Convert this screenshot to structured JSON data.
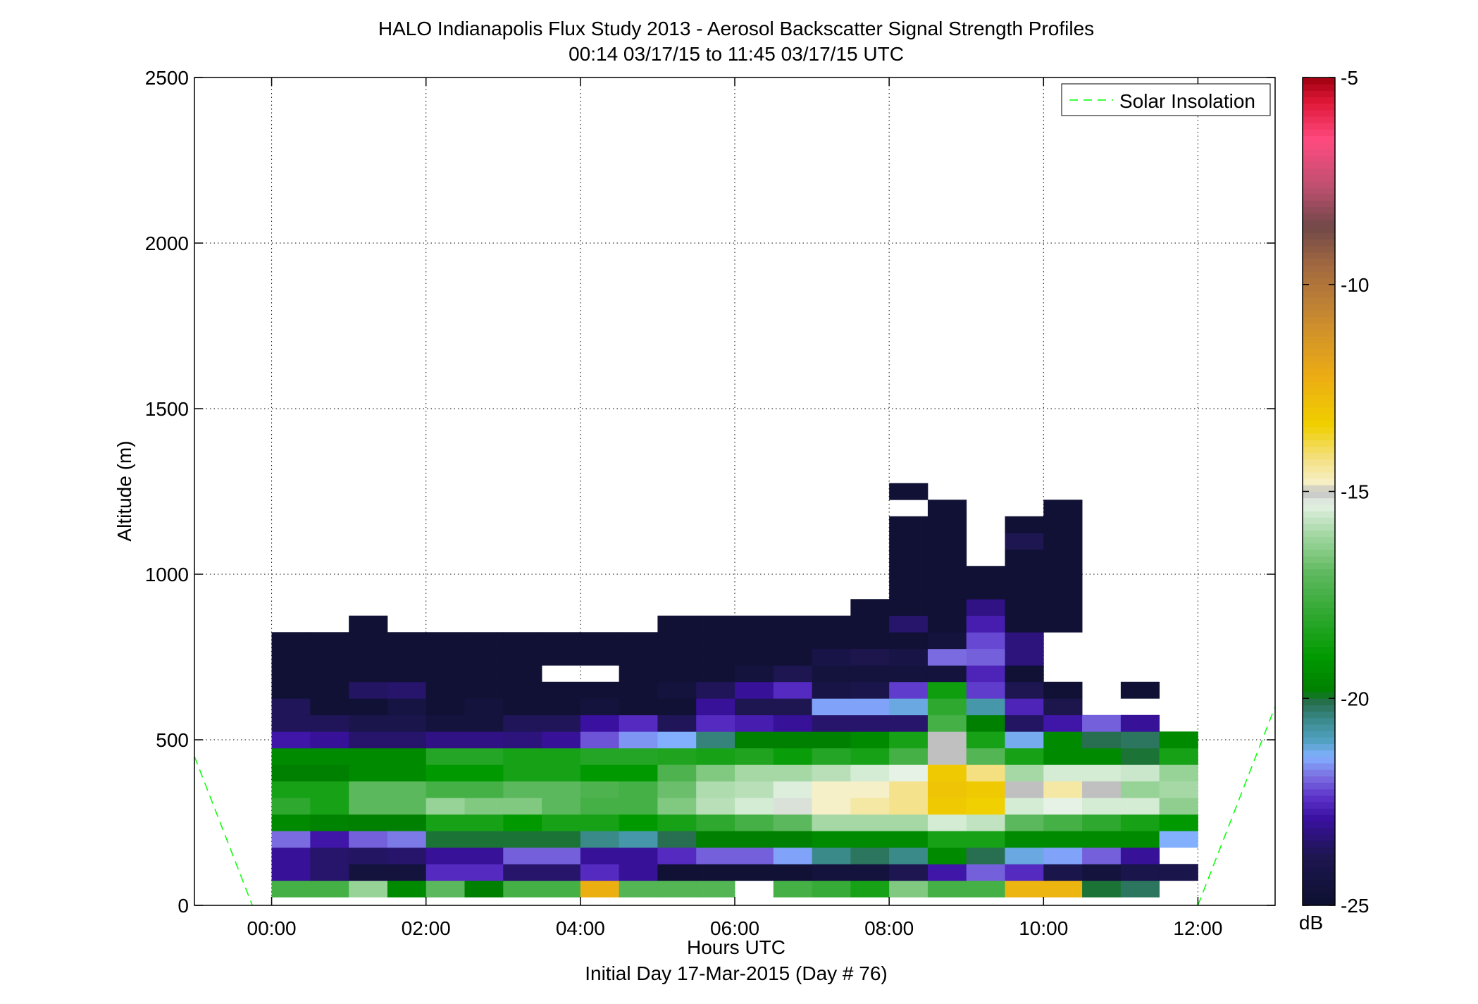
{
  "chart_data": {
    "type": "heatmap",
    "title": "HALO Indianapolis Flux Study 2013 - Aerosol Backscatter Signal Strength Profiles",
    "subtitle": "00:14 03/17/15 to 11:45 03/17/15  UTC",
    "xlabel": "Hours UTC",
    "xlabel2": "Initial Day 17-Mar-2015 (Day # 76)",
    "ylabel": "Altitude (m)",
    "xlim": [
      -1,
      13
    ],
    "ylim": [
      0,
      2500
    ],
    "grid": true,
    "xticks": [
      {
        "v": 0,
        "label": "00:00"
      },
      {
        "v": 2,
        "label": "02:00"
      },
      {
        "v": 4,
        "label": "04:00"
      },
      {
        "v": 6,
        "label": "06:00"
      },
      {
        "v": 8,
        "label": "08:00"
      },
      {
        "v": 10,
        "label": "10:00"
      },
      {
        "v": 12,
        "label": "12:00"
      }
    ],
    "yticks": [
      {
        "v": 0,
        "label": "0"
      },
      {
        "v": 500,
        "label": "500"
      },
      {
        "v": 1000,
        "label": "1000"
      },
      {
        "v": 1500,
        "label": "1500"
      },
      {
        "v": 2000,
        "label": "2000"
      },
      {
        "v": 2500,
        "label": "2500"
      }
    ],
    "legend": {
      "position": "top-right",
      "entries": [
        {
          "name": "Solar Insolation",
          "color": "#00ff00",
          "style": "dashed"
        }
      ]
    },
    "solar_insolation": {
      "segments": [
        [
          [
            -1,
            450
          ],
          [
            -0.25,
            0
          ]
        ],
        [
          [
            12,
            0
          ],
          [
            13,
            600
          ]
        ]
      ]
    },
    "colorbar": {
      "label": "dB",
      "range": [
        -25,
        -5
      ],
      "ticks": [
        {
          "v": -5,
          "label": "-5"
        },
        {
          "v": -10,
          "label": "-10"
        },
        {
          "v": -15,
          "label": "-15"
        },
        {
          "v": -20,
          "label": "-20"
        },
        {
          "v": -25,
          "label": "-25"
        }
      ],
      "stops": [
        [
          -25,
          "#0d1030"
        ],
        [
          -23.8,
          "#1d1650"
        ],
        [
          -22.9,
          "#3a10a0"
        ],
        [
          -22.4,
          "#5a30c8"
        ],
        [
          -21.9,
          "#7a6ce0"
        ],
        [
          -21.4,
          "#82b0ff"
        ],
        [
          -21.0,
          "#50a0c0"
        ],
        [
          -20.5,
          "#3a8a8a"
        ],
        [
          -20.1,
          "#286e50"
        ],
        [
          -19.8,
          "#008000"
        ],
        [
          -19.0,
          "#009a00"
        ],
        [
          -18.0,
          "#2ea82e"
        ],
        [
          -17.0,
          "#5cb85c"
        ],
        [
          -16.0,
          "#a6d8a6"
        ],
        [
          -15.3,
          "#e6f2e6"
        ],
        [
          -15.0,
          "#c0c0c0"
        ],
        [
          -14.8,
          "#f6f0c8"
        ],
        [
          -14.2,
          "#f4e080"
        ],
        [
          -13.4,
          "#f0d000"
        ],
        [
          -12.2,
          "#ecac14"
        ],
        [
          -10.8,
          "#c88a30"
        ],
        [
          -9.5,
          "#a06840"
        ],
        [
          -8.6,
          "#704848"
        ],
        [
          -7.6,
          "#c05070"
        ],
        [
          -6.5,
          "#ff4a80"
        ],
        [
          -5.6,
          "#e01838"
        ],
        [
          -5,
          "#a00010"
        ]
      ]
    },
    "x_start": 0.25,
    "x_step": 0.5,
    "y_start": 50,
    "y_step": 50,
    "rows": [
      [
        -17.5,
        -17.5,
        -16.2,
        -19.5,
        -17.0,
        -19.8,
        -17.5,
        -17.5,
        -12.3,
        -17.2,
        -17.2,
        -17.2,
        null,
        -17.5,
        -17.8,
        -18.5,
        -16.5,
        -17.5,
        -17.5,
        -12.5,
        -12.5,
        -20.0,
        -20.2,
        null,
        null
      ],
      [
        -23.0,
        -23.5,
        -24.5,
        -24.5,
        -22.5,
        -22.5,
        -23.5,
        -23.5,
        -22.5,
        -23.0,
        -24.8,
        -24.8,
        -24.8,
        -24.8,
        -24.5,
        -24.5,
        -23.8,
        -22.8,
        -22.0,
        -22.5,
        -24.0,
        -24.5,
        -24.0,
        -24.0,
        null
      ],
      [
        -23.0,
        -23.5,
        -23.6,
        -23.5,
        -23.0,
        -23.0,
        -22.0,
        -22.0,
        -23.0,
        -23.0,
        -22.5,
        -22.0,
        -22.0,
        -21.5,
        -20.5,
        -20.2,
        -20.5,
        -19.5,
        -20.1,
        -21.2,
        -21.5,
        -22.0,
        -23.0,
        null,
        null
      ],
      [
        -21.9,
        -22.8,
        -22.0,
        -21.8,
        -20.0,
        -20.0,
        -20.0,
        -20.0,
        -20.5,
        -20.8,
        -20.1,
        -19.8,
        -19.8,
        -19.8,
        -19.5,
        -19.5,
        -19.5,
        -18.5,
        -18.5,
        -19.5,
        -19.5,
        -19.5,
        -19.5,
        -21.4,
        null
      ],
      [
        -19.5,
        -19.7,
        -19.8,
        -19.8,
        -18.5,
        -18.5,
        -19.0,
        -18.5,
        -18.5,
        -19.0,
        -18.5,
        -18.0,
        -17.5,
        -17.0,
        -16.0,
        -16.0,
        -16.0,
        -15.5,
        -15.7,
        -17.0,
        -17.5,
        -18.0,
        -18.5,
        -19.0,
        null
      ],
      [
        -18.0,
        -18.5,
        -17.0,
        -17.0,
        -16.2,
        -16.5,
        -16.5,
        -17.0,
        -17.5,
        -17.5,
        -16.5,
        -15.8,
        -15.5,
        -15.2,
        -14.8,
        -14.5,
        -14.3,
        -13.2,
        -13.4,
        -15.5,
        -15.3,
        -15.5,
        -15.5,
        -16.3,
        null
      ],
      [
        -18.5,
        -18.5,
        -17.0,
        -17.0,
        -17.5,
        -17.5,
        -17.0,
        -17.0,
        -17.3,
        -17.5,
        -16.8,
        -15.9,
        -15.8,
        -15.4,
        -14.8,
        -14.8,
        -14.3,
        -13.0,
        -13.2,
        -15.0,
        -14.5,
        -15.0,
        -16.2,
        -16.0,
        null
      ],
      [
        -19.8,
        -19.8,
        -19.5,
        -19.5,
        -19.0,
        -19.0,
        -18.5,
        -18.5,
        -19.0,
        -19.0,
        -17.3,
        -16.5,
        -16.0,
        -16.0,
        -15.8,
        -15.5,
        -15.3,
        -13.2,
        -14.2,
        -16.0,
        -15.5,
        -15.5,
        -15.6,
        -16.2,
        null
      ],
      [
        -19.5,
        -19.5,
        -19.5,
        -19.5,
        -18.2,
        -18.2,
        -18.5,
        -18.5,
        -18.2,
        -18.2,
        -18.3,
        -18.5,
        -18.3,
        -18.8,
        -18.2,
        -18.5,
        -17.5,
        -15.0,
        -17.2,
        -18.5,
        -19.5,
        -19.5,
        -20.0,
        -18.5,
        null
      ],
      [
        -22.8,
        -23.0,
        -23.5,
        -23.5,
        -23.2,
        -23.2,
        -23.3,
        -23.0,
        -22.1,
        -21.6,
        -21.4,
        -20.4,
        -19.8,
        -19.8,
        -19.8,
        -19.5,
        -18.5,
        -15.0,
        -18.5,
        -21.3,
        -19.5,
        -20.1,
        -20.2,
        -19.5,
        null
      ],
      [
        -23.7,
        -23.7,
        -24.0,
        -24.0,
        -24.5,
        -24.5,
        -23.7,
        -23.7,
        -22.9,
        -22.5,
        -23.7,
        -22.5,
        -22.7,
        -23.0,
        -23.5,
        -23.5,
        -23.5,
        -17.5,
        -19.8,
        -23.6,
        -22.8,
        -22.0,
        -23.0,
        null,
        null
      ],
      [
        -23.7,
        -24.8,
        -24.8,
        -24.3,
        -24.8,
        -24.5,
        -24.8,
        -24.8,
        -24.5,
        -24.8,
        -24.8,
        -23.0,
        -23.8,
        -23.8,
        -21.5,
        -21.5,
        -21.2,
        -18.0,
        -20.8,
        -22.6,
        -23.9,
        null,
        null,
        null,
        null
      ],
      [
        -24.8,
        -24.8,
        -23.6,
        -23.5,
        -24.8,
        -24.8,
        -24.8,
        -24.8,
        -24.8,
        -24.8,
        -24.5,
        -23.7,
        -23.0,
        -22.5,
        -24.2,
        -24.0,
        -22.3,
        -18.7,
        -22.3,
        -23.8,
        -24.8,
        null,
        -24.8,
        null,
        null
      ],
      [
        -24.8,
        -24.8,
        -24.8,
        -24.8,
        -24.8,
        -24.8,
        -24.8,
        null,
        null,
        -24.8,
        -24.8,
        -24.8,
        -24.5,
        -23.8,
        -24.5,
        -24.5,
        -24.5,
        -24.5,
        -22.6,
        -24.8,
        null,
        null,
        null,
        null,
        null
      ],
      [
        -24.8,
        -24.8,
        -24.8,
        -24.8,
        -24.8,
        -24.8,
        -24.8,
        -24.8,
        -24.8,
        -24.8,
        -24.8,
        -24.8,
        -24.8,
        -24.8,
        -24.1,
        -23.9,
        -24.2,
        -21.9,
        -22.0,
        -23.3,
        null,
        null,
        null,
        null,
        null
      ],
      [
        -24.8,
        -24.8,
        -24.8,
        -24.8,
        -24.8,
        -24.8,
        -24.8,
        -24.8,
        -24.8,
        -24.8,
        -24.8,
        -24.8,
        -24.8,
        -24.8,
        -24.8,
        -24.8,
        -24.8,
        -24.5,
        -22.2,
        -23.3,
        null,
        null,
        null,
        null,
        null
      ],
      [
        null,
        null,
        -24.8,
        null,
        null,
        null,
        null,
        null,
        null,
        null,
        -24.8,
        -24.8,
        -24.8,
        -24.8,
        -24.8,
        -24.8,
        -23.5,
        -24.8,
        -22.7,
        -24.8,
        -24.8,
        null,
        null,
        null,
        null
      ],
      [
        null,
        null,
        null,
        null,
        null,
        null,
        null,
        null,
        null,
        null,
        null,
        null,
        null,
        null,
        null,
        -24.8,
        -24.8,
        -24.8,
        -23.2,
        -24.8,
        -24.8,
        null,
        null,
        null,
        null
      ],
      [
        null,
        null,
        null,
        null,
        null,
        null,
        null,
        null,
        null,
        null,
        null,
        null,
        null,
        null,
        null,
        null,
        -24.8,
        -24.8,
        -24.8,
        -24.8,
        -24.8,
        null,
        null,
        null,
        null
      ],
      [
        null,
        null,
        null,
        null,
        null,
        null,
        null,
        null,
        null,
        null,
        null,
        null,
        null,
        null,
        null,
        null,
        -24.8,
        -24.8,
        -24.8,
        -24.8,
        -24.8,
        null,
        null,
        null,
        null
      ],
      [
        null,
        null,
        null,
        null,
        null,
        null,
        null,
        null,
        null,
        null,
        null,
        null,
        null,
        null,
        null,
        null,
        -24.8,
        -24.8,
        null,
        -24.8,
        -24.8,
        null,
        null,
        null,
        null
      ],
      [
        null,
        null,
        null,
        null,
        null,
        null,
        null,
        null,
        null,
        null,
        null,
        null,
        null,
        null,
        null,
        null,
        -24.8,
        -24.8,
        null,
        -23.8,
        -24.8,
        null,
        null,
        null,
        null
      ],
      [
        null,
        null,
        null,
        null,
        null,
        null,
        null,
        null,
        null,
        null,
        null,
        null,
        null,
        null,
        null,
        null,
        -24.8,
        -24.8,
        null,
        -24.8,
        -24.8,
        null,
        null,
        null,
        null
      ],
      [
        null,
        null,
        null,
        null,
        null,
        null,
        null,
        null,
        null,
        null,
        null,
        null,
        null,
        null,
        null,
        null,
        null,
        -24.8,
        null,
        null,
        -24.8,
        null,
        null,
        null,
        null
      ],
      [
        null,
        null,
        null,
        null,
        null,
        null,
        null,
        null,
        null,
        null,
        null,
        null,
        null,
        null,
        null,
        null,
        -24.8,
        null,
        null,
        null,
        null,
        null,
        null,
        null,
        null
      ]
    ]
  }
}
